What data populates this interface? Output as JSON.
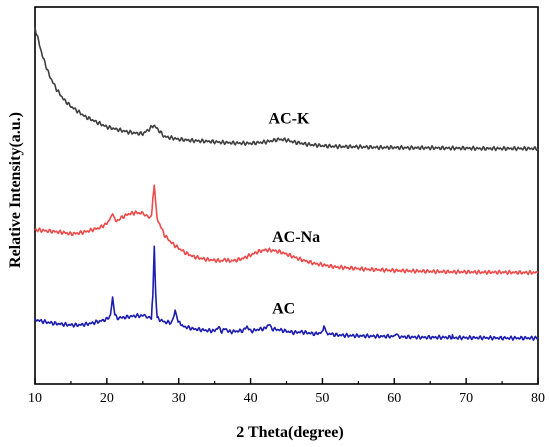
{
  "chart_data": {
    "type": "line",
    "title": "",
    "xlabel": "2 Theta(degree)",
    "ylabel": "Relative Intensity(a.u.)",
    "xlim": [
      10,
      80
    ],
    "xticks": [
      "10",
      "20",
      "30",
      "40",
      "50",
      "60",
      "70",
      "80"
    ],
    "yticks_shown": false,
    "grid": false,
    "series": [
      {
        "name": "AC-K",
        "color": "#3f3f3f",
        "points": [
          [
            10.0,
            94
          ],
          [
            10.5,
            90
          ],
          [
            11,
            86
          ],
          [
            12,
            80
          ],
          [
            13,
            76
          ],
          [
            14,
            73
          ],
          [
            15,
            71
          ],
          [
            16,
            69.5
          ],
          [
            17,
            68
          ],
          [
            18,
            67
          ],
          [
            19,
            66
          ],
          [
            20,
            65
          ],
          [
            21,
            64.5
          ],
          [
            22,
            64
          ],
          [
            23,
            63.5
          ],
          [
            24,
            63.2
          ],
          [
            25,
            63
          ],
          [
            26,
            64.5
          ],
          [
            26.5,
            65.5
          ],
          [
            27,
            64.5
          ],
          [
            28,
            62.2
          ],
          [
            29,
            61.8
          ],
          [
            30,
            61.4
          ],
          [
            32,
            61
          ],
          [
            34,
            60.8
          ],
          [
            36,
            60.5
          ],
          [
            38,
            60.3
          ],
          [
            40,
            60.2
          ],
          [
            42,
            60.6
          ],
          [
            43,
            61
          ],
          [
            44,
            61.4
          ],
          [
            45,
            61.2
          ],
          [
            46,
            60.6
          ],
          [
            48,
            59.9
          ],
          [
            50,
            59.5
          ],
          [
            52,
            59.3
          ],
          [
            55,
            59.2
          ],
          [
            58,
            59
          ],
          [
            60,
            59
          ],
          [
            62,
            58.9
          ],
          [
            65,
            58.9
          ],
          [
            68,
            58.8
          ],
          [
            70,
            58.8
          ],
          [
            72,
            58.7
          ],
          [
            75,
            58.7
          ],
          [
            78,
            58.7
          ],
          [
            80,
            58.7
          ]
        ],
        "label_at": [
          42.5,
          66
        ]
      },
      {
        "name": "AC-Na",
        "color": "#ef4a4a",
        "points": [
          [
            10.0,
            35
          ],
          [
            12,
            34.6
          ],
          [
            14,
            34.2
          ],
          [
            15,
            33.8
          ],
          [
            16,
            34
          ],
          [
            17,
            34.4
          ],
          [
            18,
            35
          ],
          [
            19,
            35.6
          ],
          [
            20,
            36.8
          ],
          [
            20.5,
            38.5
          ],
          [
            20.8,
            39.6
          ],
          [
            21.1,
            38
          ],
          [
            21.6,
            37.6
          ],
          [
            22,
            38.5
          ],
          [
            23,
            39.6
          ],
          [
            24,
            40
          ],
          [
            25,
            39.8
          ],
          [
            25.8,
            39
          ],
          [
            26.2,
            38.8
          ],
          [
            26.4,
            44
          ],
          [
            26.6,
            48
          ],
          [
            26.8,
            43
          ],
          [
            27.0,
            38.2
          ],
          [
            27.5,
            36
          ],
          [
            28,
            33.5
          ],
          [
            29,
            31.2
          ],
          [
            30,
            29.6
          ],
          [
            31,
            28.2
          ],
          [
            32,
            27.2
          ],
          [
            33,
            26.7
          ],
          [
            34,
            26.3
          ],
          [
            35,
            26.1
          ],
          [
            36,
            25.9
          ],
          [
            36.5,
            26.4
          ],
          [
            37,
            25.9
          ],
          [
            38,
            26.1
          ],
          [
            39,
            26.7
          ],
          [
            40,
            27.6
          ],
          [
            41,
            28.6
          ],
          [
            42,
            29.1
          ],
          [
            43,
            29
          ],
          [
            44,
            28.6
          ],
          [
            45,
            27.9
          ],
          [
            46,
            27.1
          ],
          [
            47,
            26.3
          ],
          [
            48,
            25.7
          ],
          [
            49,
            25.1
          ],
          [
            50,
            24.8
          ],
          [
            51,
            24.4
          ],
          [
            52,
            24.1
          ],
          [
            54,
            23.8
          ],
          [
            56,
            23.5
          ],
          [
            58,
            23.3
          ],
          [
            60,
            23.1
          ],
          [
            62,
            23
          ],
          [
            64,
            22.9
          ],
          [
            66,
            22.8
          ],
          [
            68,
            22.7
          ],
          [
            70,
            22.7
          ],
          [
            72,
            22.6
          ],
          [
            75,
            22.6
          ],
          [
            78,
            22.5
          ],
          [
            80,
            22.5
          ]
        ],
        "label_at": [
          43,
          31.5
        ]
      },
      {
        "name": "AC",
        "color": "#1c1cb0",
        "points": [
          [
            10.0,
            8.8
          ],
          [
            11,
            8.3
          ],
          [
            12,
            7.9
          ],
          [
            13,
            7.6
          ],
          [
            14,
            7.4
          ],
          [
            15,
            7.2
          ],
          [
            16,
            7.2
          ],
          [
            17,
            7.4
          ],
          [
            18,
            7.8
          ],
          [
            19,
            8.3
          ],
          [
            20,
            8.9
          ],
          [
            20.5,
            10
          ],
          [
            20.8,
            15.8
          ],
          [
            21.1,
            10.2
          ],
          [
            21.6,
            9.1
          ],
          [
            22,
            9.3
          ],
          [
            23,
            9.6
          ],
          [
            24,
            9.9
          ],
          [
            25,
            9.9
          ],
          [
            25.8,
            9.6
          ],
          [
            26.2,
            9.5
          ],
          [
            26.4,
            16
          ],
          [
            26.6,
            30
          ],
          [
            26.8,
            16
          ],
          [
            27.0,
            9.2
          ],
          [
            28,
            8.1
          ],
          [
            29,
            7.9
          ],
          [
            29.3,
            9.6
          ],
          [
            29.5,
            11.4
          ],
          [
            29.8,
            8.8
          ],
          [
            30.5,
            6.9
          ],
          [
            32,
            6.1
          ],
          [
            34,
            5.6
          ],
          [
            35,
            5.5
          ],
          [
            35.5,
            6.6
          ],
          [
            36,
            5.3
          ],
          [
            36.5,
            6.2
          ],
          [
            37,
            5.2
          ],
          [
            38,
            5.4
          ],
          [
            39,
            5.6
          ],
          [
            39.5,
            6.8
          ],
          [
            40,
            5.4
          ],
          [
            41,
            5.9
          ],
          [
            42,
            6.2
          ],
          [
            42.6,
            7.4
          ],
          [
            43,
            6.1
          ],
          [
            44,
            5.8
          ],
          [
            45,
            5.4
          ],
          [
            46,
            5
          ],
          [
            47,
            5.2
          ],
          [
            48,
            4.9
          ],
          [
            49,
            4.6
          ],
          [
            50,
            5.1
          ],
          [
            50.2,
            6.9
          ],
          [
            50.5,
            4.8
          ],
          [
            52,
            4.3
          ],
          [
            54,
            4.1
          ],
          [
            56,
            4
          ],
          [
            58,
            3.9
          ],
          [
            60,
            3.9
          ],
          [
            60.2,
            4.6
          ],
          [
            60.5,
            3.8
          ],
          [
            62,
            3.7
          ],
          [
            64,
            3.6
          ],
          [
            66,
            3.6
          ],
          [
            68,
            3.6
          ],
          [
            68.2,
            4.1
          ],
          [
            68.5,
            3.5
          ],
          [
            70,
            3.5
          ],
          [
            72,
            3.5
          ],
          [
            75,
            3.4
          ],
          [
            78,
            3.4
          ],
          [
            80,
            3.4
          ]
        ],
        "label_at": [
          43,
          10.5
        ]
      }
    ],
    "ylim_data": [
      -10,
      100
    ]
  }
}
